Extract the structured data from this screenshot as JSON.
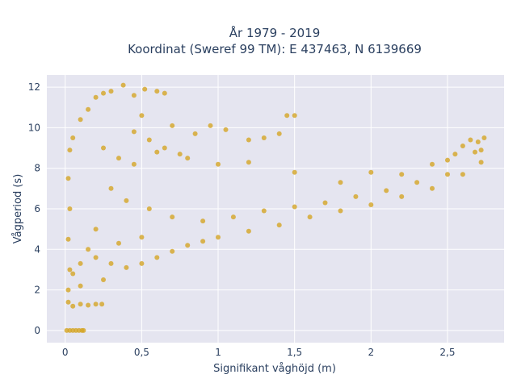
{
  "chart_data": {
    "type": "scatter",
    "title": "År 1979 - 2019",
    "subtitle": "Koordinat (Sweref 99 TM): E 437463, N 6139669",
    "xlabel": "Signifikant våghöjd (m)",
    "ylabel": "Vågperiod (s)",
    "xlim": [
      -0.12,
      2.87
    ],
    "ylim": [
      -0.6,
      12.6
    ],
    "xticks": [
      0,
      0.5,
      1,
      1.5,
      2,
      2.5
    ],
    "xtick_labels": [
      "0",
      "0,5",
      "1",
      "1,5",
      "2",
      "2,5"
    ],
    "yticks": [
      0,
      2,
      4,
      6,
      8,
      10,
      12
    ],
    "ytick_labels": [
      "0",
      "2",
      "4",
      "6",
      "8",
      "10",
      "12"
    ],
    "grid": true,
    "legend": "none",
    "colors": {
      "marker": "#d4a526",
      "plot_bg": "#e5e5f0",
      "grid": "#ffffff"
    },
    "series": [
      {
        "values": [
          [
            0.01,
            0
          ],
          [
            0.03,
            0
          ],
          [
            0.05,
            0
          ],
          [
            0.07,
            0
          ],
          [
            0.09,
            0
          ],
          [
            0.11,
            0
          ],
          [
            0.12,
            0
          ],
          [
            0.02,
            1.4
          ],
          [
            0.05,
            1.2
          ],
          [
            0.1,
            1.3
          ],
          [
            0.15,
            1.25
          ],
          [
            0.2,
            1.3
          ],
          [
            0.24,
            1.3
          ],
          [
            0.02,
            2.0
          ],
          [
            0.03,
            3.0
          ],
          [
            0.02,
            4.5
          ],
          [
            0.03,
            6.0
          ],
          [
            0.02,
            7.5
          ],
          [
            0.03,
            8.9
          ],
          [
            0.05,
            9.5
          ],
          [
            0.1,
            10.4
          ],
          [
            0.15,
            10.9
          ],
          [
            0.2,
            11.5
          ],
          [
            0.25,
            11.7
          ],
          [
            0.3,
            11.8
          ],
          [
            0.38,
            12.1
          ],
          [
            0.45,
            11.6
          ],
          [
            0.52,
            11.9
          ],
          [
            0.6,
            11.8
          ],
          [
            0.65,
            11.7
          ],
          [
            0.05,
            2.8
          ],
          [
            0.1,
            3.3
          ],
          [
            0.2,
            3.6
          ],
          [
            0.3,
            3.3
          ],
          [
            0.4,
            3.1
          ],
          [
            0.5,
            3.3
          ],
          [
            0.6,
            3.6
          ],
          [
            0.7,
            3.9
          ],
          [
            0.8,
            4.2
          ],
          [
            0.9,
            4.4
          ],
          [
            1.0,
            4.6
          ],
          [
            1.2,
            4.9
          ],
          [
            1.4,
            5.2
          ],
          [
            1.6,
            5.6
          ],
          [
            1.8,
            5.9
          ],
          [
            2.0,
            6.2
          ],
          [
            2.2,
            6.6
          ],
          [
            2.4,
            7.0
          ],
          [
            2.6,
            7.7
          ],
          [
            2.72,
            8.3
          ],
          [
            0.5,
            10.6
          ],
          [
            0.7,
            10.1
          ],
          [
            0.85,
            9.7
          ],
          [
            0.95,
            10.1
          ],
          [
            1.05,
            9.9
          ],
          [
            1.2,
            9.4
          ],
          [
            1.3,
            9.5
          ],
          [
            1.4,
            9.7
          ],
          [
            1.45,
            10.6
          ],
          [
            1.5,
            10.6
          ],
          [
            1.2,
            8.3
          ],
          [
            1.5,
            7.8
          ],
          [
            1.8,
            7.3
          ],
          [
            2.0,
            7.8
          ],
          [
            2.2,
            7.7
          ],
          [
            2.4,
            8.2
          ],
          [
            2.55,
            8.7
          ],
          [
            2.6,
            9.1
          ],
          [
            2.65,
            9.4
          ],
          [
            2.7,
            9.3
          ],
          [
            2.74,
            9.5
          ],
          [
            2.72,
            8.9
          ],
          [
            2.68,
            8.8
          ],
          [
            2.5,
            8.4
          ],
          [
            0.25,
            9.0
          ],
          [
            0.35,
            8.5
          ],
          [
            0.45,
            8.2
          ],
          [
            0.3,
            7.0
          ],
          [
            0.4,
            6.4
          ],
          [
            0.55,
            6.0
          ],
          [
            0.7,
            5.6
          ],
          [
            0.9,
            5.4
          ],
          [
            1.1,
            5.6
          ],
          [
            1.3,
            5.9
          ],
          [
            1.5,
            6.1
          ],
          [
            1.7,
            6.3
          ],
          [
            1.9,
            6.6
          ],
          [
            2.1,
            6.9
          ],
          [
            2.3,
            7.3
          ],
          [
            2.5,
            7.7
          ],
          [
            0.6,
            8.8
          ],
          [
            0.8,
            8.5
          ],
          [
            1.0,
            8.2
          ],
          [
            0.2,
            5.0
          ],
          [
            0.15,
            4.0
          ],
          [
            0.35,
            4.3
          ],
          [
            0.5,
            4.6
          ],
          [
            0.25,
            2.5
          ],
          [
            0.1,
            2.2
          ],
          [
            0.45,
            9.8
          ],
          [
            0.55,
            9.4
          ],
          [
            0.65,
            9.0
          ],
          [
            0.75,
            8.7
          ]
        ]
      }
    ]
  }
}
